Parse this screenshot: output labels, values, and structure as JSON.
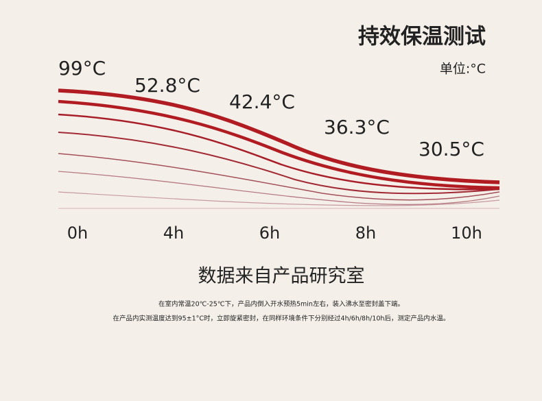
{
  "chart_data": {
    "type": "line",
    "title": "持效保温测试",
    "unit": "单位:°C",
    "categories": [
      "0h",
      "4h",
      "6h",
      "8h",
      "10h"
    ],
    "values": [
      99,
      52.8,
      42.4,
      36.3,
      30.5
    ],
    "value_labels": [
      "99°C",
      "52.8°C",
      "42.4°C",
      "36.3°C",
      "30.5°C"
    ],
    "color": "#b01c22",
    "source": "数据来自产品研究室",
    "notes": [
      "在室内常温20℃-25℃下，产品内倒入开水预热5min左右，装入沸水至密封盖下端。",
      "在产品内实测温度达到95±1°C时，立即旋紧密封，在同样环境条件下分别经过4h/6h/8h/10h后，测定产品内水温。"
    ]
  }
}
